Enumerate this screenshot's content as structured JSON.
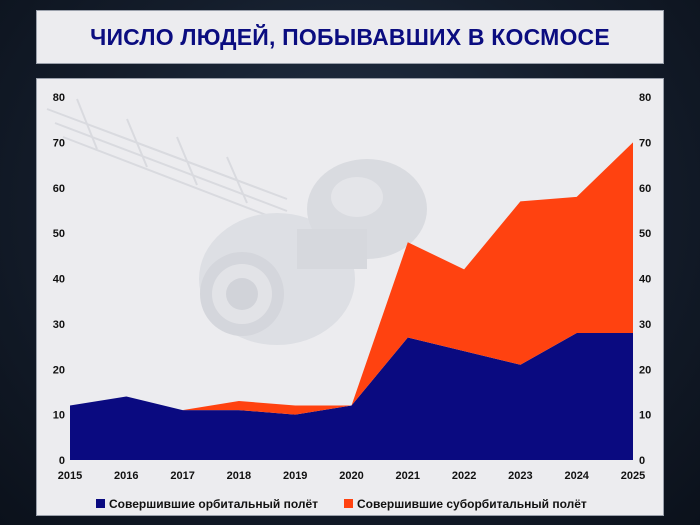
{
  "title": "ЧИСЛО ЛЮДЕЙ, ПОБЫВАВШИХ В КОСМОСЕ",
  "colors": {
    "orbital": "#0a0a80",
    "suborbital": "#ff4210",
    "title_text": "#0b0d80"
  },
  "chart_data": {
    "type": "area",
    "stacked": true,
    "title": "ЧИСЛО ЛЮДЕЙ, ПОБЫВАВШИХ В КОСМОСЕ",
    "x": [
      "2015",
      "2016",
      "2017",
      "2018",
      "2019",
      "2020",
      "2021",
      "2022",
      "2023",
      "2024",
      "2025"
    ],
    "series": [
      {
        "name": "Совершившие орбитальный полёт",
        "values": [
          12,
          14,
          11,
          11,
          10,
          12,
          27,
          24,
          21,
          28,
          28
        ]
      },
      {
        "name": "Совершившие суборбитальный полёт",
        "values": [
          0,
          0,
          0,
          2,
          2,
          0,
          21,
          18,
          36,
          30,
          42
        ]
      }
    ],
    "ylim": [
      0,
      80
    ],
    "yticks": [
      0,
      10,
      20,
      30,
      40,
      50,
      60,
      70,
      80
    ],
    "secondary_y_axis": true,
    "legend_position": "bottom",
    "xlabel": "",
    "ylabel": ""
  }
}
